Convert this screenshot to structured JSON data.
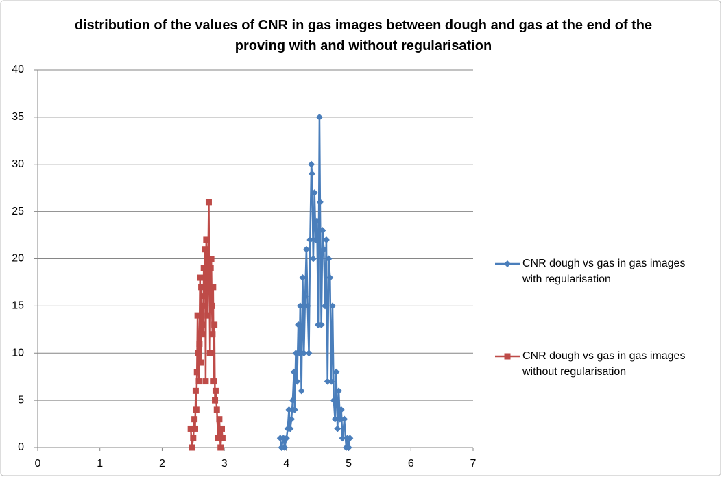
{
  "chart_data": {
    "type": "scatter-line",
    "title": "distribution of the values of CNR in gas images between dough and gas at the end of the proving with and without regularisation",
    "xlim": [
      0,
      7
    ],
    "xticks": [
      0,
      1,
      2,
      3,
      4,
      5,
      6,
      7
    ],
    "ylim": [
      0,
      40
    ],
    "yticks": [
      0,
      5,
      10,
      15,
      20,
      25,
      30,
      35,
      40
    ],
    "grid": true,
    "legend": "right",
    "series": [
      {
        "name": "CNR dough vs gas in gas images with regularisation",
        "color": "#4a7ebb",
        "marker": "diamond",
        "x": [
          3.9,
          3.92,
          3.95,
          3.97,
          4.0,
          4.02,
          4.04,
          4.06,
          4.08,
          4.1,
          4.12,
          4.13,
          4.15,
          4.17,
          4.19,
          4.21,
          4.22,
          4.24,
          4.26,
          4.28,
          4.3,
          4.32,
          4.34,
          4.36,
          4.38,
          4.4,
          4.41,
          4.43,
          4.45,
          4.47,
          4.49,
          4.51,
          4.53,
          4.54,
          4.56,
          4.58,
          4.6,
          4.62,
          4.64,
          4.66,
          4.68,
          4.7,
          4.72,
          4.74,
          4.76,
          4.78,
          4.8,
          4.82,
          4.84,
          4.86,
          4.88,
          4.9,
          4.93,
          4.96,
          4.98,
          5.0,
          5.02
        ],
        "values": [
          1,
          0,
          1,
          0,
          1,
          2,
          4,
          2,
          3,
          5,
          8,
          4,
          10,
          7,
          13,
          10,
          15,
          6,
          18,
          10,
          16,
          21,
          15,
          10,
          22,
          30,
          29,
          20,
          27,
          22,
          24,
          13,
          35,
          26,
          13,
          23,
          21,
          15,
          22,
          7,
          20,
          18,
          7,
          15,
          5,
          3,
          8,
          2,
          6,
          3,
          4,
          1,
          3,
          0,
          1,
          0,
          1
        ]
      },
      {
        "name": "CNR dough vs gas in gas images without regularisation",
        "color": "#be4b48",
        "marker": "square",
        "x": [
          2.46,
          2.48,
          2.5,
          2.52,
          2.53,
          2.54,
          2.55,
          2.56,
          2.57,
          2.58,
          2.59,
          2.6,
          2.61,
          2.62,
          2.63,
          2.64,
          2.65,
          2.66,
          2.67,
          2.68,
          2.69,
          2.7,
          2.71,
          2.72,
          2.73,
          2.74,
          2.75,
          2.76,
          2.77,
          2.78,
          2.79,
          2.8,
          2.81,
          2.82,
          2.83,
          2.84,
          2.85,
          2.86,
          2.88,
          2.9,
          2.92,
          2.94,
          2.96,
          2.97
        ],
        "values": [
          2,
          0,
          1,
          3,
          2,
          6,
          4,
          8,
          14,
          10,
          7,
          11,
          18,
          9,
          17,
          13,
          15,
          12,
          19,
          16,
          21,
          7,
          22,
          18,
          14,
          20,
          26,
          17,
          10,
          19,
          20,
          15,
          12,
          17,
          7,
          13,
          5,
          6,
          4,
          1,
          3,
          0,
          2,
          1
        ]
      }
    ]
  }
}
